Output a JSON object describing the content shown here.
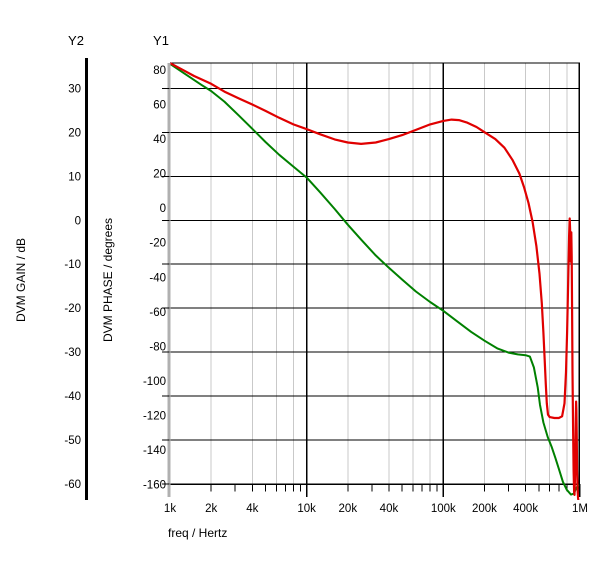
{
  "chart_data": {
    "type": "line",
    "title": "",
    "background": "#ffffff",
    "x_axis": {
      "label": "freq / Hertz",
      "scale": "log",
      "min": 1000,
      "max": 1000000,
      "labeled_ticks": [
        {
          "value": 1000,
          "label": "1k"
        },
        {
          "value": 2000,
          "label": "2k"
        },
        {
          "value": 4000,
          "label": "4k"
        },
        {
          "value": 10000,
          "label": "10k"
        },
        {
          "value": 20000,
          "label": "20k"
        },
        {
          "value": 40000,
          "label": "40k"
        },
        {
          "value": 100000,
          "label": "100k"
        },
        {
          "value": 200000,
          "label": "200k"
        },
        {
          "value": 400000,
          "label": "400k"
        },
        {
          "value": 1000000,
          "label": "1M"
        }
      ],
      "minor_tick_multiples": [
        2,
        3,
        4,
        5,
        6,
        7,
        8,
        9
      ],
      "minor_grid_multiples": [
        2,
        4,
        6,
        8
      ],
      "decades": [
        1000,
        10000,
        100000
      ]
    },
    "y1_axis": {
      "header": "Y1",
      "label": "DVM PHASE / degrees",
      "min": -160,
      "max": 80,
      "tick_step": 20,
      "ticks": [
        80,
        60,
        40,
        20,
        0,
        -20,
        -40,
        -60,
        -80,
        -100,
        -120,
        -140,
        -160
      ]
    },
    "y2_axis": {
      "header": "Y2",
      "label": "DVM GAIN / dB",
      "min": -60,
      "max": 30,
      "tick_step": 10,
      "ticks": [
        30,
        20,
        10,
        0,
        -10,
        -20,
        -30,
        -40,
        -50,
        -60
      ]
    },
    "grid": {
      "minor_color": "#c9c9c9",
      "major_color": "#000000",
      "y1_axis_bar_color": "#b0b0b0",
      "horizontal_gridlines_follow": "y2"
    },
    "series": [
      {
        "name": "DVM GAIN",
        "axis": "y2",
        "color": "#008000",
        "points": [
          [
            1000,
            35.6
          ],
          [
            1300,
            33.2
          ],
          [
            1700,
            30.8
          ],
          [
            2000,
            29.4
          ],
          [
            2500,
            27.0
          ],
          [
            3200,
            23.8
          ],
          [
            4000,
            20.8
          ],
          [
            5000,
            17.8
          ],
          [
            6300,
            14.9
          ],
          [
            8000,
            12.2
          ],
          [
            10000,
            9.7
          ],
          [
            12500,
            6.4
          ],
          [
            16000,
            2.6
          ],
          [
            20000,
            -1.0
          ],
          [
            25000,
            -4.4
          ],
          [
            32000,
            -8.0
          ],
          [
            40000,
            -10.8
          ],
          [
            50000,
            -13.5
          ],
          [
            63000,
            -16.2
          ],
          [
            80000,
            -18.6
          ],
          [
            100000,
            -20.6
          ],
          [
            125000,
            -22.9
          ],
          [
            160000,
            -25.4
          ],
          [
            200000,
            -27.4
          ],
          [
            250000,
            -29.2
          ],
          [
            300000,
            -30.1
          ],
          [
            350000,
            -30.5
          ],
          [
            400000,
            -30.7
          ],
          [
            430000,
            -31.0
          ],
          [
            460000,
            -33.5
          ],
          [
            490000,
            -38.0
          ],
          [
            510000,
            -42.0
          ],
          [
            540000,
            -46.0
          ],
          [
            580000,
            -49.3
          ],
          [
            620000,
            -51.5
          ],
          [
            660000,
            -54.0
          ],
          [
            700000,
            -56.5
          ],
          [
            750000,
            -59.5
          ],
          [
            800000,
            -61.3
          ],
          [
            860000,
            -62.4
          ],
          [
            900000,
            -62.2
          ],
          [
            940000,
            -60.9
          ],
          [
            970000,
            -60.3
          ]
        ]
      },
      {
        "name": "DVM PHASE",
        "axis": "y1",
        "color": "#e00000",
        "points": [
          [
            1000,
            84
          ],
          [
            1200,
            80.7
          ],
          [
            1500,
            76.5
          ],
          [
            2000,
            72
          ],
          [
            2500,
            67.5
          ],
          [
            3200,
            63.5
          ],
          [
            4000,
            60
          ],
          [
            5000,
            56.3
          ],
          [
            6300,
            52.3
          ],
          [
            8000,
            48.5
          ],
          [
            10000,
            45.8
          ],
          [
            12500,
            42.8
          ],
          [
            16000,
            39.8
          ],
          [
            20000,
            38.0
          ],
          [
            25000,
            37.2
          ],
          [
            32000,
            38.0
          ],
          [
            40000,
            40.0
          ],
          [
            50000,
            42.3
          ],
          [
            63000,
            45.3
          ],
          [
            80000,
            48.5
          ],
          [
            100000,
            50.5
          ],
          [
            115000,
            51.3
          ],
          [
            130000,
            51.0
          ],
          [
            150000,
            49.5
          ],
          [
            175000,
            47.0
          ],
          [
            200000,
            44.0
          ],
          [
            240000,
            40.0
          ],
          [
            280000,
            35.0
          ],
          [
            320000,
            28.0
          ],
          [
            360000,
            20.0
          ],
          [
            390000,
            12.0
          ],
          [
            420000,
            3.0
          ],
          [
            450000,
            -8.0
          ],
          [
            480000,
            -22.0
          ],
          [
            505000,
            -38.0
          ],
          [
            525000,
            -55.0
          ],
          [
            540000,
            -72.0
          ],
          [
            552000,
            -88.0
          ],
          [
            562000,
            -102.0
          ],
          [
            572000,
            -113.0
          ],
          [
            583000,
            -119.5
          ],
          [
            600000,
            -121.0
          ],
          [
            650000,
            -121.5
          ],
          [
            700000,
            -121.5
          ],
          [
            740000,
            -120.5
          ],
          [
            770000,
            -113.0
          ],
          [
            790000,
            -95.0
          ],
          [
            805000,
            -72.0
          ],
          [
            820000,
            -42.0
          ],
          [
            832000,
            -16.0
          ],
          [
            840000,
            -6.0
          ],
          [
            846000,
            -12.0
          ],
          [
            851000,
            -28.0
          ],
          [
            855000,
            -31.0
          ],
          [
            860000,
            -20.0
          ],
          [
            864000,
            -14.0
          ],
          [
            869000,
            -28.0
          ],
          [
            875000,
            -60.0
          ],
          [
            882000,
            -95.0
          ],
          [
            890000,
            -128.0
          ],
          [
            898000,
            -152.0
          ],
          [
            905000,
            -164.0
          ],
          [
            912000,
            -166.0
          ],
          [
            918000,
            -158.0
          ],
          [
            925000,
            -140.0
          ],
          [
            931000,
            -122.0
          ],
          [
            936000,
            -112.0
          ],
          [
            941000,
            -117.0
          ],
          [
            947000,
            -135.0
          ],
          [
            953000,
            -152.0
          ],
          [
            960000,
            -163.0
          ],
          [
            968000,
            -168.0
          ],
          [
            975000,
            -169.5
          ]
        ]
      }
    ]
  }
}
